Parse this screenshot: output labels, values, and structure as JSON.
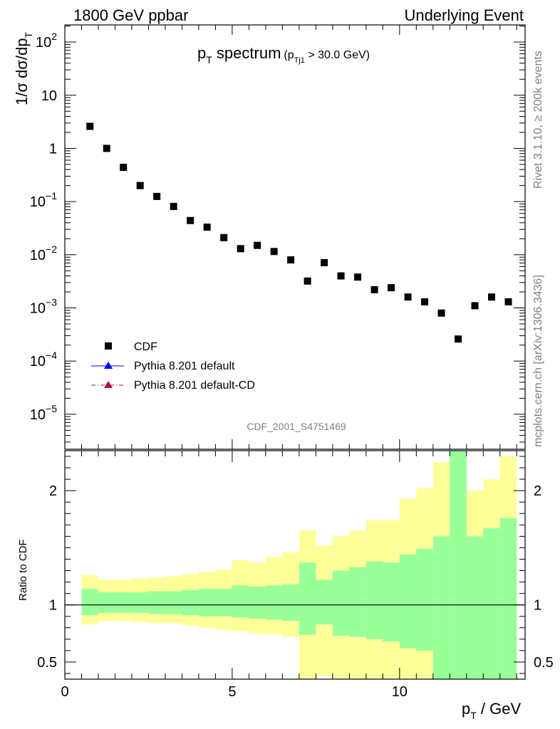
{
  "header": {
    "left_label": "1800 GeV ppbar",
    "right_label": "Underlying Event"
  },
  "side_labels": {
    "rivet": "Rivet 3.1.10, ≥ 200k events",
    "mcplots": "mcplots.cern.ch [arXiv:1306.3436]"
  },
  "watermark": "CDF_2001_S4751469",
  "chart_data": [
    {
      "type": "scatter",
      "title": "p_T spectrum",
      "title_parts": {
        "main": "p",
        "main_sub": "T",
        "main_rest": " spectrum",
        "cut_open": "(p",
        "cut_sub": "Tj1",
        "cut_rest": " > 30.0 GeV)"
      },
      "ylabel_parts": {
        "main": "1/σ dσ/dp",
        "sub": "T"
      },
      "yscale": "log",
      "ylim": [
        2.2e-06,
        210
      ],
      "xlim": [
        0,
        13.75
      ],
      "y_ticks": [
        {
          "value": 100,
          "base": "10",
          "exp": "2"
        },
        {
          "value": 10,
          "base": "10",
          "exp": ""
        },
        {
          "value": 1,
          "base": "1",
          "exp": ""
        },
        {
          "value": 0.1,
          "base": "10",
          "exp": "−1"
        },
        {
          "value": 0.01,
          "base": "10",
          "exp": "−2"
        },
        {
          "value": 0.001,
          "base": "10",
          "exp": "−3"
        },
        {
          "value": 0.0001,
          "base": "10",
          "exp": "−4"
        },
        {
          "value": 1e-05,
          "base": "10",
          "exp": "−5"
        }
      ],
      "legend": {
        "position": "bottom-left",
        "entries": [
          {
            "label": "CDF",
            "marker": "square",
            "color": "#000000"
          },
          {
            "label": "Pythia 8.201 default",
            "marker": "triangle",
            "color": "#0000ff",
            "line": "solid"
          },
          {
            "label": "Pythia 8.201 default-CD",
            "marker": "triangle",
            "color": "#b0103a",
            "line": "dashdot"
          }
        ]
      },
      "series": [
        {
          "name": "CDF",
          "x": [
            0.75,
            1.25,
            1.75,
            2.25,
            2.75,
            3.25,
            3.75,
            4.25,
            4.75,
            5.25,
            5.75,
            6.25,
            6.75,
            7.25,
            7.75,
            8.25,
            8.75,
            9.25,
            9.75,
            10.25,
            10.75,
            11.25,
            11.75,
            12.25,
            12.75,
            13.25
          ],
          "y": [
            2.6,
            1.0,
            0.44,
            0.2,
            0.125,
            0.081,
            0.044,
            0.033,
            0.021,
            0.013,
            0.015,
            0.0115,
            0.008,
            0.0032,
            0.0071,
            0.004,
            0.0038,
            0.0022,
            0.0024,
            0.0016,
            0.0013,
            0.0008,
            0.00026,
            0.0011,
            0.0016,
            0.0013
          ]
        }
      ]
    },
    {
      "type": "area",
      "ylabel": "Ratio to CDF",
      "xlabel_parts": {
        "main": "p",
        "sub": "T",
        "rest": " / GeV"
      },
      "xlim": [
        0,
        13.75
      ],
      "ylim": [
        0.35,
        2.35
      ],
      "x_ticks": [
        0,
        5,
        10
      ],
      "y_ticks": [
        0.5,
        1,
        2
      ],
      "reference_line": 1,
      "band_colors": {
        "inner": "#99ff99",
        "outer": "#ffff99"
      },
      "bins": [
        0.5,
        1.0,
        1.5,
        2.0,
        2.5,
        3.0,
        3.5,
        4.0,
        4.5,
        5.0,
        5.5,
        6.0,
        6.5,
        7.0,
        7.5,
        8.0,
        8.5,
        9.0,
        9.5,
        10.0,
        10.5,
        11.0,
        11.5,
        12.0,
        12.5,
        13.0,
        13.5
      ],
      "inner_band": {
        "low": [
          0.91,
          0.93,
          0.93,
          0.93,
          0.92,
          0.92,
          0.91,
          0.9,
          0.9,
          0.89,
          0.88,
          0.87,
          0.86,
          0.74,
          0.83,
          0.73,
          0.72,
          0.7,
          0.68,
          0.62,
          0.6,
          0.35,
          0.35,
          0.35,
          0.35,
          0.35
        ],
        "high": [
          1.14,
          1.11,
          1.11,
          1.11,
          1.12,
          1.12,
          1.13,
          1.14,
          1.14,
          1.17,
          1.16,
          1.17,
          1.18,
          1.37,
          1.22,
          1.3,
          1.33,
          1.38,
          1.37,
          1.44,
          1.49,
          1.6,
          2.35,
          1.6,
          1.67,
          1.76
        ]
      },
      "outer_band": {
        "low": [
          0.83,
          0.86,
          0.86,
          0.85,
          0.84,
          0.84,
          0.82,
          0.8,
          0.78,
          0.77,
          0.75,
          0.74,
          0.72,
          0.35,
          0.38,
          0.35,
          0.35,
          0.35,
          0.35,
          0.35,
          0.35,
          0.35,
          0.35,
          0.35,
          0.35,
          0.35
        ],
        "high": [
          1.26,
          1.22,
          1.22,
          1.23,
          1.24,
          1.25,
          1.27,
          1.29,
          1.31,
          1.39,
          1.37,
          1.42,
          1.46,
          1.65,
          1.52,
          1.6,
          1.65,
          1.74,
          1.74,
          1.93,
          2.02,
          2.25,
          2.35,
          2.0,
          2.1,
          2.3
        ]
      }
    }
  ]
}
